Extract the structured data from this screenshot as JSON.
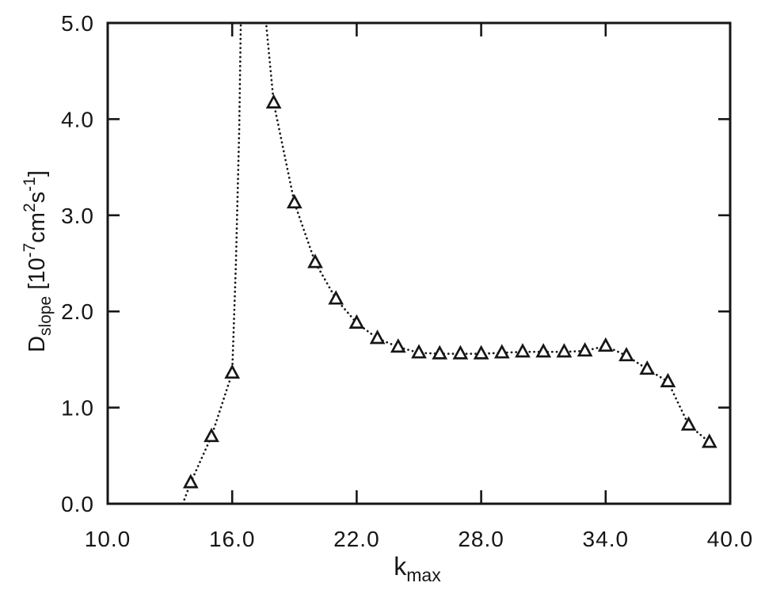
{
  "figure": {
    "background": "#ffffff",
    "ink_color": "#161616",
    "marker_fill": "#ffffff"
  },
  "chart_data": {
    "type": "scatter",
    "marker": "triangle-up-open",
    "line_style": "dotted",
    "title": "",
    "xlabel_segments": [
      {
        "t": "k"
      },
      {
        "t": "max",
        "pos": "sub"
      }
    ],
    "ylabel_segments": [
      {
        "t": "D"
      },
      {
        "t": "slope",
        "pos": "sub"
      },
      {
        "t": " ["
      },
      {
        "t": "10"
      },
      {
        "t": "-7",
        "pos": "sup"
      },
      {
        "t": "cm"
      },
      {
        "t": "2",
        "pos": "sup"
      },
      {
        "t": "s"
      },
      {
        "t": "-1",
        "pos": "sup"
      },
      {
        "t": "]"
      }
    ],
    "xlim": [
      10.0,
      40.0
    ],
    "ylim": [
      0.0,
      5.0
    ],
    "x_ticks": [
      10,
      16,
      22,
      28,
      34,
      40
    ],
    "x_tick_labels": [
      "10.0",
      "16.0",
      "22.0",
      "28.0",
      "34.0",
      "40.0"
    ],
    "y_ticks": [
      0,
      1,
      2,
      3,
      4,
      5
    ],
    "y_tick_labels": [
      "0.0",
      "1.0",
      "2.0",
      "3.0",
      "4.0",
      "5.0"
    ],
    "grid": false,
    "legend": null,
    "points": [
      [
        14,
        0.22
      ],
      [
        15,
        0.7
      ],
      [
        16,
        1.36
      ],
      [
        18,
        4.17
      ],
      [
        19,
        3.13
      ],
      [
        20,
        2.51
      ],
      [
        21,
        2.13
      ],
      [
        22,
        1.88
      ],
      [
        23,
        1.72
      ],
      [
        24,
        1.63
      ],
      [
        25,
        1.57
      ],
      [
        26,
        1.56
      ],
      [
        27,
        1.56
      ],
      [
        28,
        1.56
      ],
      [
        29,
        1.57
      ],
      [
        30,
        1.58
      ],
      [
        31,
        1.58
      ],
      [
        32,
        1.58
      ],
      [
        33,
        1.59
      ],
      [
        34,
        1.64
      ],
      [
        35,
        1.54
      ],
      [
        36,
        1.4
      ],
      [
        37,
        1.27
      ],
      [
        38,
        0.82
      ],
      [
        39,
        0.64
      ]
    ],
    "peak_offscale": {
      "exits_top_at_x": 16.44,
      "reenters_top_at_x": 17.5,
      "note": "dotted curve exceeds y-axis maximum (5.0) between x=16 and x=18"
    },
    "line_path": [
      [
        13.62,
        0.0
      ],
      [
        14,
        0.22
      ],
      [
        15,
        0.7
      ],
      [
        16,
        1.36
      ],
      [
        16.18,
        2.5
      ],
      [
        16.34,
        3.9
      ],
      [
        16.44,
        5.35
      ],
      [
        17.48,
        5.35
      ],
      [
        17.72,
        4.8
      ],
      [
        18,
        4.17
      ],
      [
        19,
        3.13
      ],
      [
        20,
        2.51
      ],
      [
        21,
        2.13
      ],
      [
        22,
        1.88
      ],
      [
        23,
        1.72
      ],
      [
        24,
        1.63
      ],
      [
        25,
        1.57
      ],
      [
        26,
        1.56
      ],
      [
        27,
        1.56
      ],
      [
        28,
        1.56
      ],
      [
        29,
        1.57
      ],
      [
        30,
        1.58
      ],
      [
        31,
        1.58
      ],
      [
        32,
        1.58
      ],
      [
        33,
        1.59
      ],
      [
        34,
        1.64
      ],
      [
        35,
        1.54
      ],
      [
        36,
        1.4
      ],
      [
        37,
        1.27
      ],
      [
        38,
        0.82
      ],
      [
        39,
        0.64
      ]
    ]
  }
}
